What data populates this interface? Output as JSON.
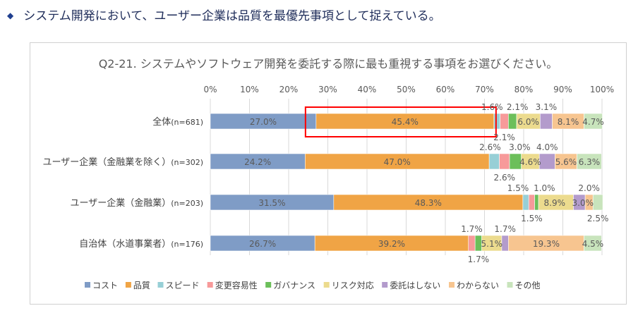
{
  "headline": {
    "bullet": "◆",
    "text": "システム開発において、ユーザー企業は品質を最優先事項として捉えている。"
  },
  "chart_data": {
    "type": "bar",
    "orientation": "horizontal-stacked-100",
    "title": "Q2-21. システムやソフトウェア開発を委託する際に最も重視する事項をお選びください。",
    "x_ticks": [
      "0%",
      "10%",
      "20%",
      "30%",
      "40%",
      "50%",
      "60%",
      "70%",
      "80%",
      "90%",
      "100%"
    ],
    "xlim": [
      0,
      100
    ],
    "grid": true,
    "legend_position": "bottom",
    "categories": [
      {
        "label": "全体",
        "n": "(n=681)"
      },
      {
        "label": "ユーザー企業（金融業を除く）",
        "n": "(n=302)"
      },
      {
        "label": "ユーザー企業（金融業）",
        "n": "(n=203)"
      },
      {
        "label": "自治体（水道事業者）",
        "n": "(n=176)"
      }
    ],
    "series": [
      {
        "name": "コスト",
        "color": "#7f9cc6",
        "values": [
          27.0,
          24.2,
          31.5,
          26.7
        ]
      },
      {
        "name": "品質",
        "color": "#f0a445",
        "values": [
          45.4,
          47.0,
          48.3,
          39.2
        ]
      },
      {
        "name": "スピード",
        "color": "#97cfd6",
        "values": [
          1.6,
          2.6,
          1.5,
          0
        ]
      },
      {
        "name": "変更容易性",
        "color": "#f79a9a",
        "values": [
          2.1,
          2.6,
          1.5,
          1.7
        ]
      },
      {
        "name": "ガバナンス",
        "color": "#6cbf5a",
        "values": [
          2.1,
          3.0,
          1.0,
          1.7
        ]
      },
      {
        "name": "リスク対応",
        "color": "#ecdb8e",
        "values": [
          6.0,
          4.6,
          8.9,
          5.1
        ]
      },
      {
        "name": "委託はしない",
        "color": "#b39bcc",
        "values": [
          3.1,
          4.0,
          3.0,
          1.7
        ]
      },
      {
        "name": "わからない",
        "color": "#f7c590",
        "values": [
          8.1,
          5.6,
          2.0,
          19.3
        ]
      },
      {
        "name": "その他",
        "color": "#c8e4bc",
        "values": [
          4.7,
          6.3,
          2.5,
          4.5
        ]
      }
    ],
    "highlight": {
      "category": "全体",
      "series": "品質",
      "color": "#ff0000"
    }
  }
}
